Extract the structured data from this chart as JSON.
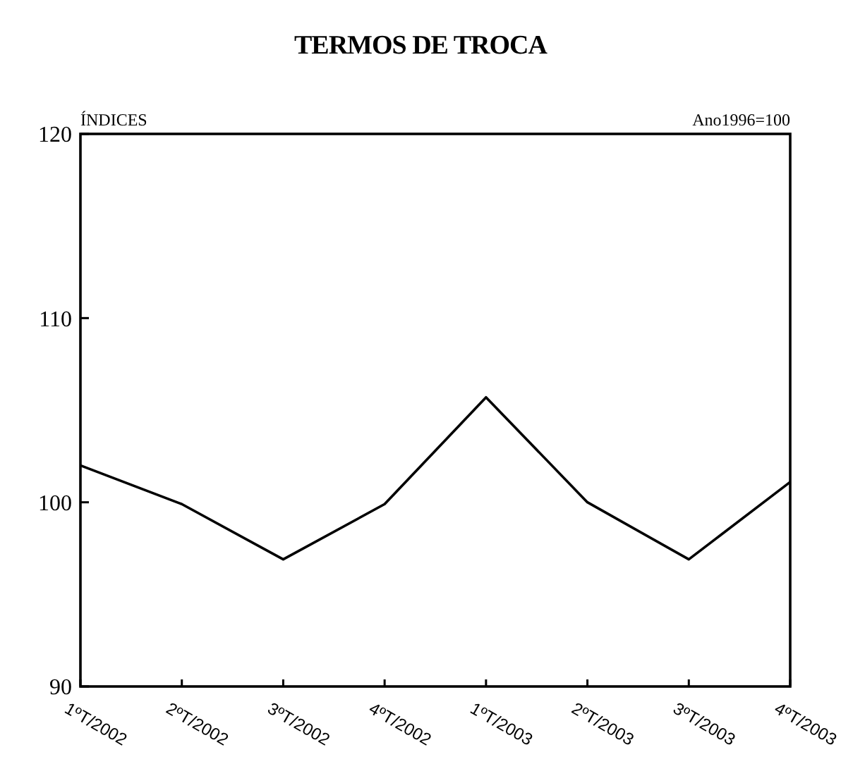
{
  "chart_data": {
    "type": "line",
    "title": "TERMOS DE TROCA",
    "ylabel": "ÍNDICES",
    "annotations": [
      "Ano1996=100"
    ],
    "categories": [
      "1ºT/2002",
      "2ºT/2002",
      "3ºT/2002",
      "4ºT/2002",
      "1ºT/2003",
      "2ºT/2003",
      "3ºT/2003",
      "4ºT/2003"
    ],
    "series": [
      {
        "color": "#000000",
        "values": [
          102.0,
          99.9,
          96.9,
          99.9,
          105.7,
          100.0,
          96.9,
          101.1
        ]
      }
    ],
    "ylim": [
      90,
      120
    ],
    "yticks": [
      90,
      100,
      110,
      120
    ],
    "grid": false,
    "marker": "none",
    "line_style": "solid"
  }
}
